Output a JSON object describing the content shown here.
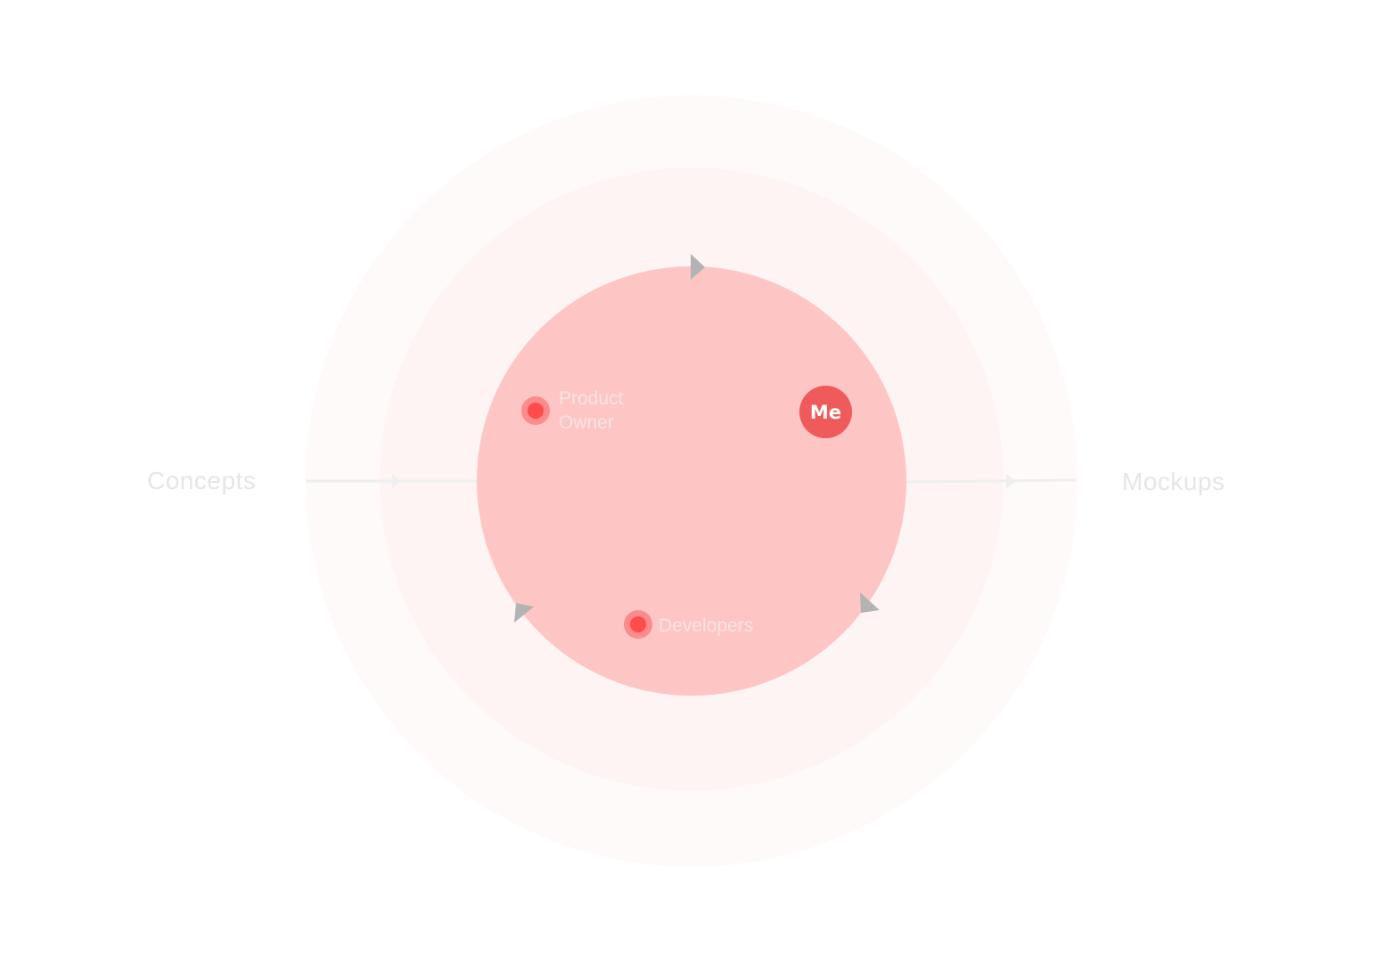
{
  "flow": {
    "input_label": "Concepts",
    "output_label": "Mockups"
  },
  "nodes": {
    "product_owner": {
      "line1": "Product",
      "line2": "Owner"
    },
    "developers": {
      "label": "Developers"
    },
    "me": {
      "label": "Me"
    }
  },
  "colors": {
    "outer_ring": "#fffafa",
    "middle_ring": "#fff4f4",
    "inner_circle": "#fec5c5",
    "node_dot": "#fe4b4b",
    "node_halo": "#fd8b8b",
    "me_badge": "#ef5a5a",
    "arrow": "#b3b3b3",
    "flow_line": "#efefef"
  },
  "icons": {
    "cycle_arrow": "triangle-arrow-icon",
    "flow_arrow": "chevron-right-icon"
  }
}
